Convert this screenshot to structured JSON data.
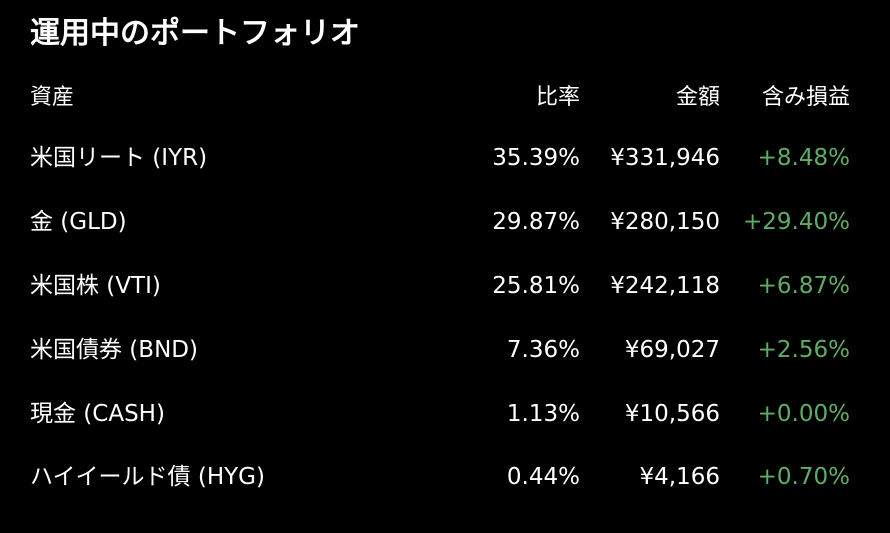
{
  "title": "運用中のポートフォリオ",
  "colors": {
    "background": "#000000",
    "text": "#ffffff",
    "gain": "#5fad65"
  },
  "headers": {
    "asset": "資産",
    "ratio": "比率",
    "amount": "金額",
    "unrealized_pl": "含み損益"
  },
  "rows": [
    {
      "asset": "米国リート (IYR)",
      "ratio": "35.39%",
      "amount": "¥331,946",
      "pl": "+8.48%"
    },
    {
      "asset": "金 (GLD)",
      "ratio": "29.87%",
      "amount": "¥280,150",
      "pl": "+29.40%"
    },
    {
      "asset": "米国株 (VTI)",
      "ratio": "25.81%",
      "amount": "¥242,118",
      "pl": "+6.87%"
    },
    {
      "asset": "米国債券 (BND)",
      "ratio": "7.36%",
      "amount": "¥69,027",
      "pl": "+2.56%"
    },
    {
      "asset": "現金 (CASH)",
      "ratio": "1.13%",
      "amount": "¥10,566",
      "pl": "+0.00%"
    },
    {
      "asset": "ハイイールド債 (HYG)",
      "ratio": "0.44%",
      "amount": "¥4,166",
      "pl": "+0.70%"
    }
  ]
}
